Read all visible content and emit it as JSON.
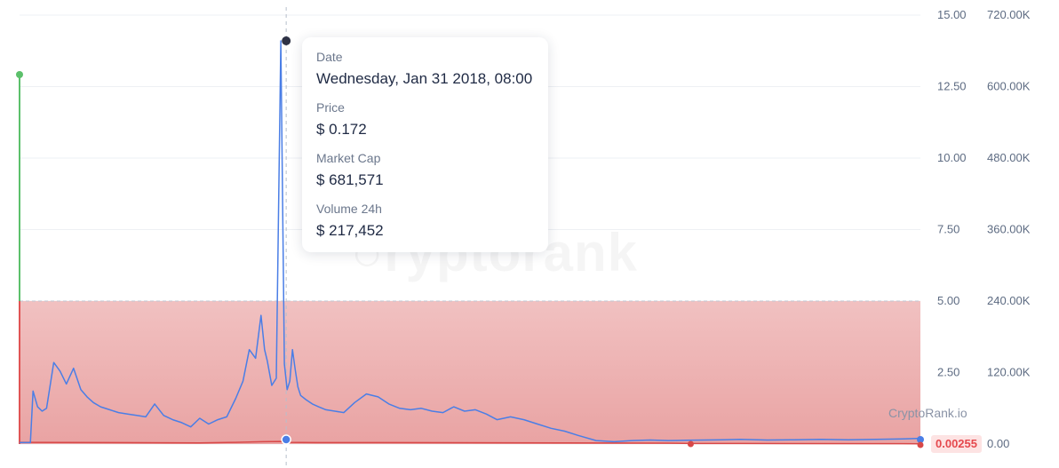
{
  "chart_data": {
    "type": "line",
    "y_left": {
      "ticks": [
        0,
        2.5,
        5,
        7.5,
        10,
        12.5,
        15
      ],
      "tick_labels": [
        "",
        "2.50",
        "5.00",
        "7.50",
        "10.00",
        "12.50",
        "15.00"
      ],
      "ylim": [
        0,
        15
      ]
    },
    "y_right": {
      "ticks": [
        0,
        120000,
        240000,
        360000,
        480000,
        600000,
        720000
      ],
      "tick_labels": [
        "0.00",
        "120.00K",
        "240.00K",
        "360.00K",
        "480.00K",
        "600.00K",
        "720.00K"
      ],
      "ylim": [
        0,
        720000
      ]
    },
    "x_range": [
      0,
      1000
    ],
    "reference_value": 5,
    "current_value_label": "0.00255",
    "grid": true,
    "series": [
      {
        "x": [
          0,
          12,
          15,
          20,
          25,
          30,
          38,
          45,
          52,
          60,
          68,
          75,
          82,
          90,
          100,
          110,
          120,
          130,
          140,
          150,
          160,
          170,
          180,
          190,
          200,
          210,
          220,
          230,
          240,
          248,
          255,
          262,
          268,
          272,
          275,
          280,
          285,
          290,
          294,
          297,
          300,
          303,
          306,
          309,
          312,
          318,
          325,
          332,
          340,
          350,
          360,
          372,
          385,
          398,
          410,
          422,
          434,
          446,
          458,
          470,
          482,
          494,
          506,
          518,
          530,
          545,
          560,
          575,
          590,
          605,
          620,
          640,
          660,
          680,
          700,
          720,
          740,
          760,
          780,
          800,
          830,
          860,
          890,
          920,
          950,
          980,
          1000
        ],
        "values": [
          0.05,
          0.05,
          1.85,
          1.3,
          1.15,
          1.25,
          2.85,
          2.55,
          2.1,
          2.65,
          1.9,
          1.65,
          1.45,
          1.3,
          1.2,
          1.1,
          1.05,
          1.0,
          0.95,
          1.4,
          1.0,
          0.85,
          0.75,
          0.6,
          0.9,
          0.7,
          0.85,
          0.95,
          1.6,
          2.2,
          3.3,
          3.0,
          4.5,
          3.3,
          2.9,
          2.05,
          2.3,
          14.1,
          2.8,
          1.9,
          2.2,
          3.3,
          2.6,
          2.0,
          1.7,
          1.55,
          1.4,
          1.3,
          1.2,
          1.15,
          1.1,
          1.45,
          1.75,
          1.65,
          1.4,
          1.25,
          1.2,
          1.25,
          1.15,
          1.1,
          1.3,
          1.15,
          1.2,
          1.05,
          0.85,
          0.95,
          0.85,
          0.7,
          0.55,
          0.45,
          0.3,
          0.12,
          0.08,
          0.12,
          0.14,
          0.12,
          0.13,
          0.14,
          0.15,
          0.16,
          0.14,
          0.15,
          0.16,
          0.15,
          0.16,
          0.18,
          0.2
        ]
      }
    ],
    "volume_series": {
      "x": [
        0,
        100,
        200,
        240,
        270,
        290,
        296,
        330,
        400,
        600,
        720,
        745,
        800,
        1000
      ],
      "values": [
        0.06,
        0.05,
        0.04,
        0.06,
        0.08,
        0.09,
        0.06,
        0.05,
        0.05,
        0.04,
        0.03,
        0.02,
        0.02,
        0.01
      ]
    },
    "hover_x": 296
  },
  "tooltip": {
    "date_label": "Date",
    "date_value": "Wednesday, Jan 31 2018, 08:00",
    "price_label": "Price",
    "price_value": "$ 0.172",
    "mcap_label": "Market Cap",
    "mcap_value": "$ 681,571",
    "volume_label": "Volume 24h",
    "volume_value": "$ 217,452"
  },
  "watermark": "CryptoRank.io",
  "colors": {
    "price_line": "#4a7ee6",
    "volume_line": "#d84848",
    "ath_line": "#5cc06b",
    "atl_line": "#e05454",
    "fill_top": "#f1c1c1",
    "fill_bottom": "#e9a3a3",
    "grid": "#eef0f4",
    "hover_dot": "#2e3245"
  }
}
